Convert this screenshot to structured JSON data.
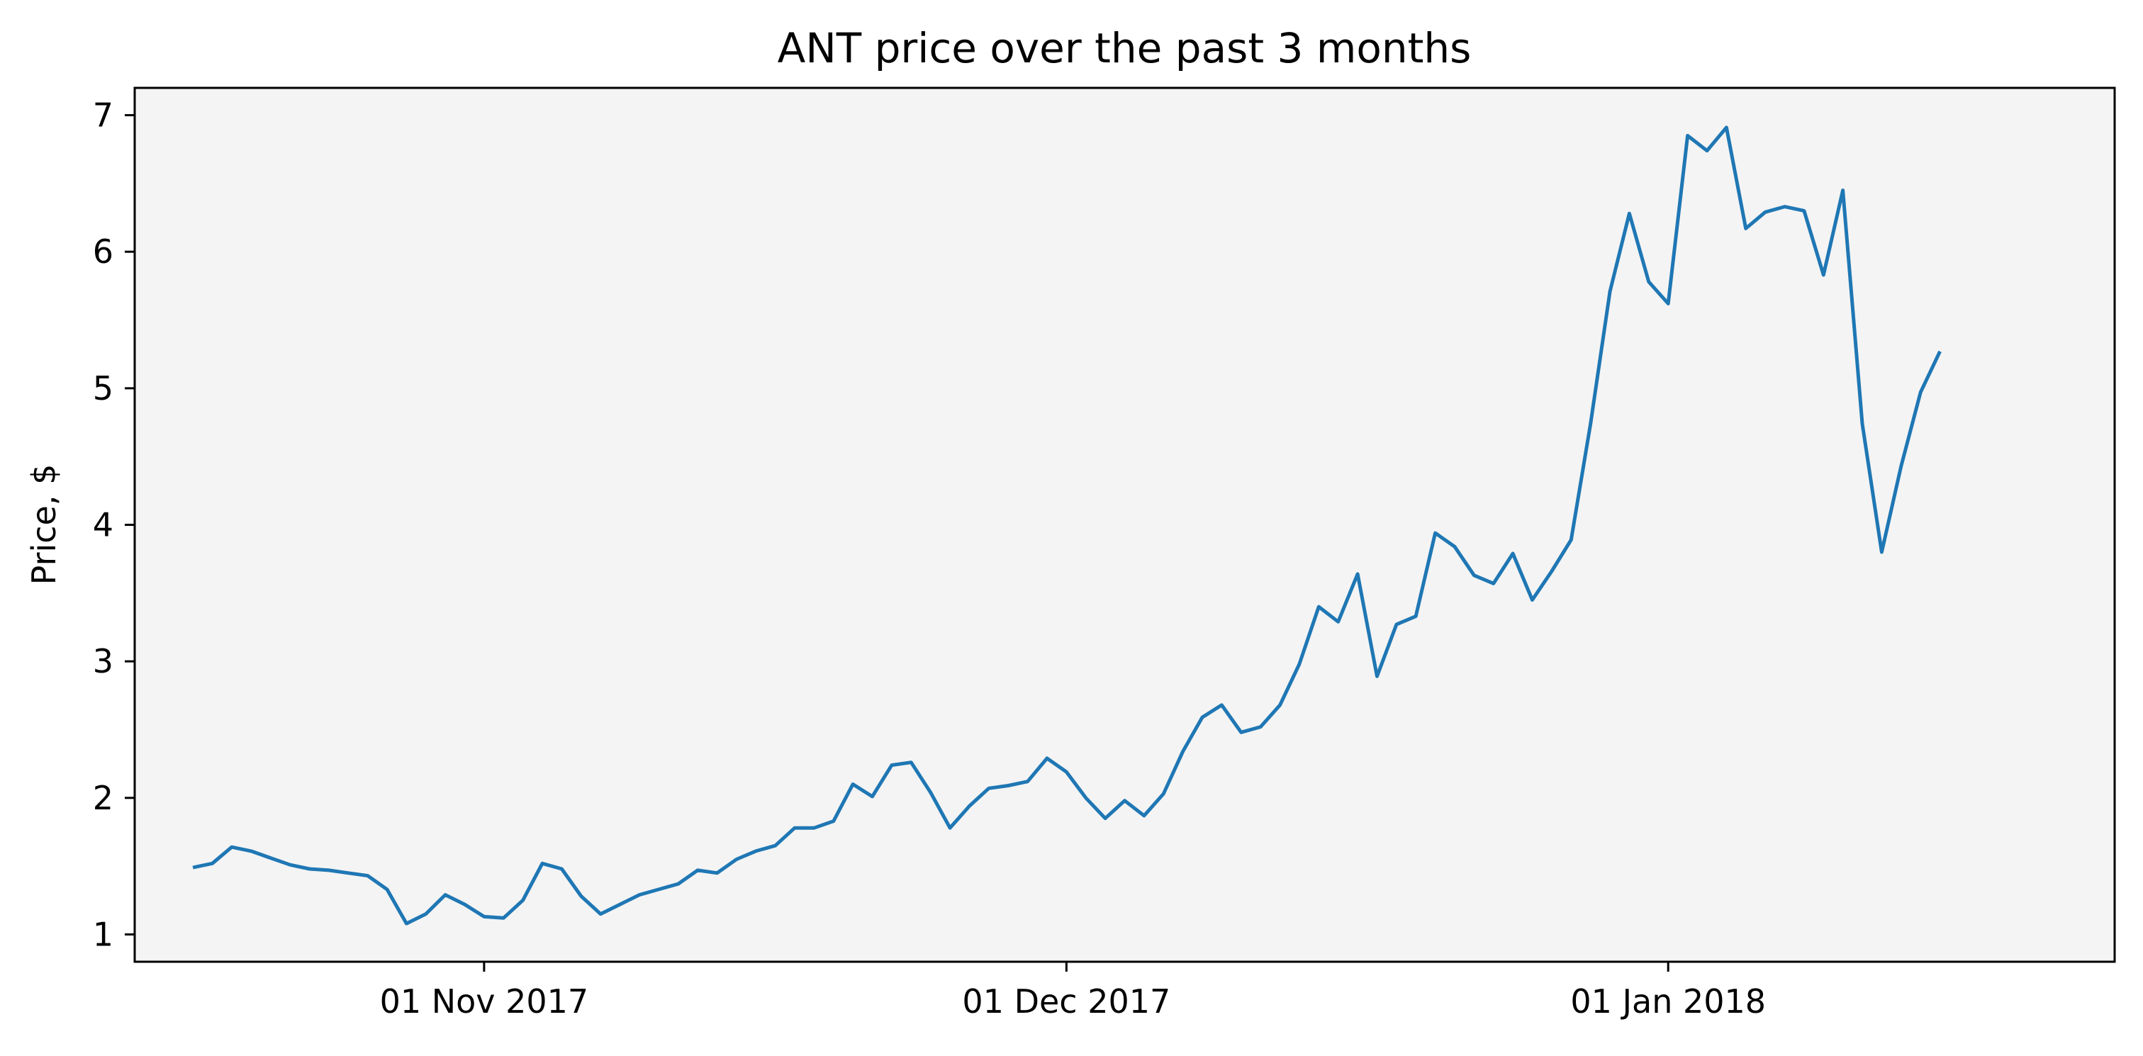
{
  "chart_data": {
    "type": "line",
    "title": "ANT price over the past 3 months",
    "xlabel": "",
    "ylabel": "Price, $",
    "x_start": "2017-10-17",
    "x_end": "2018-01-20",
    "xlim": [
      "2017-10-14",
      "2018-01-24"
    ],
    "ylim": [
      0.8,
      7.2
    ],
    "yticks": [
      1,
      2,
      3,
      4,
      5,
      6,
      7
    ],
    "xticks": [
      {
        "date": "2017-11-01",
        "label": "01 Nov 2017"
      },
      {
        "date": "2017-12-01",
        "label": "01 Dec 2017"
      },
      {
        "date": "2018-01-01",
        "label": "01 Jan 2018"
      }
    ],
    "grid": false,
    "legend": "none",
    "series": [
      {
        "color": "#1f77b4",
        "values": [
          1.49,
          1.52,
          1.64,
          1.61,
          1.56,
          1.51,
          1.48,
          1.47,
          1.45,
          1.43,
          1.33,
          1.08,
          1.15,
          1.29,
          1.22,
          1.13,
          1.12,
          1.25,
          1.52,
          1.48,
          1.28,
          1.15,
          1.22,
          1.29,
          1.33,
          1.37,
          1.47,
          1.45,
          1.55,
          1.61,
          1.65,
          1.78,
          1.78,
          1.83,
          2.1,
          2.01,
          2.24,
          2.26,
          2.04,
          1.78,
          1.94,
          2.07,
          2.09,
          2.12,
          2.29,
          2.19,
          2.0,
          1.85,
          1.98,
          1.87,
          2.03,
          2.34,
          2.59,
          2.68,
          2.48,
          2.52,
          2.68,
          2.98,
          3.4,
          3.29,
          3.64,
          2.89,
          3.27,
          3.33,
          3.94,
          3.84,
          3.63,
          3.57,
          3.79,
          3.45,
          3.66,
          3.89,
          4.74,
          5.71,
          6.28,
          5.78,
          5.62,
          6.85,
          6.74,
          6.91,
          6.17,
          6.29,
          6.33,
          6.3,
          5.83,
          6.45,
          4.74,
          3.8,
          4.43,
          4.97,
          5.27
        ]
      }
    ],
    "plot_background": "#f4f4f4"
  }
}
